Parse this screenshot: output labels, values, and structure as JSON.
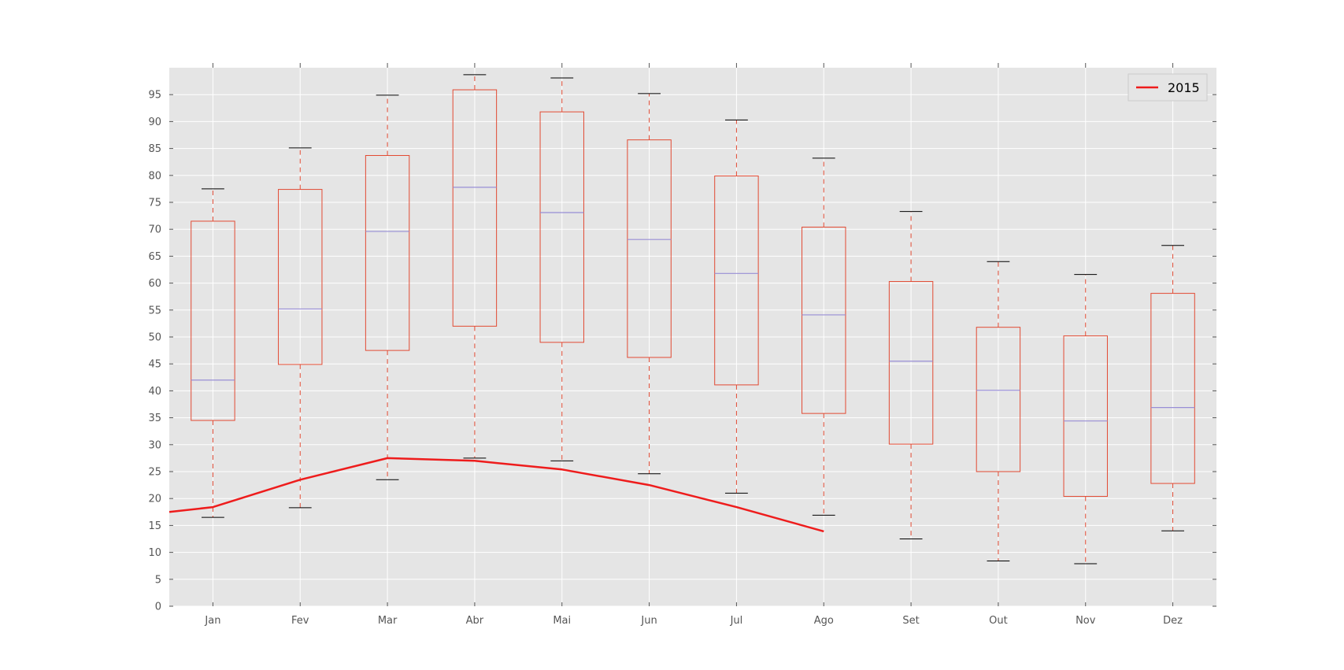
{
  "chart_data": {
    "type": "box",
    "categories": [
      "Jan",
      "Fev",
      "Mar",
      "Abr",
      "Mai",
      "Jun",
      "Jul",
      "Ago",
      "Set",
      "Out",
      "Nov",
      "Dez"
    ],
    "boxes": [
      {
        "whisker_low": 16.5,
        "q1": 34.5,
        "median": 42.0,
        "q3": 71.5,
        "whisker_high": 77.5
      },
      {
        "whisker_low": 18.3,
        "q1": 44.9,
        "median": 55.2,
        "q3": 77.4,
        "whisker_high": 85.1
      },
      {
        "whisker_low": 23.5,
        "q1": 47.5,
        "median": 69.6,
        "q3": 83.7,
        "whisker_high": 94.9
      },
      {
        "whisker_low": 27.5,
        "q1": 52.0,
        "median": 77.8,
        "q3": 95.9,
        "whisker_high": 98.7
      },
      {
        "whisker_low": 27.0,
        "q1": 49.0,
        "median": 73.1,
        "q3": 91.8,
        "whisker_high": 98.1
      },
      {
        "whisker_low": 24.6,
        "q1": 46.2,
        "median": 68.1,
        "q3": 86.6,
        "whisker_high": 95.2
      },
      {
        "whisker_low": 21.0,
        "q1": 41.1,
        "median": 61.8,
        "q3": 79.9,
        "whisker_high": 90.3
      },
      {
        "whisker_low": 16.9,
        "q1": 35.8,
        "median": 54.1,
        "q3": 70.4,
        "whisker_high": 83.2
      },
      {
        "whisker_low": 12.5,
        "q1": 30.1,
        "median": 45.5,
        "q3": 60.3,
        "whisker_high": 73.3
      },
      {
        "whisker_low": 8.4,
        "q1": 25.0,
        "median": 40.1,
        "q3": 51.8,
        "whisker_high": 64.0
      },
      {
        "whisker_low": 7.9,
        "q1": 20.4,
        "median": 34.4,
        "q3": 50.2,
        "whisker_high": 61.6
      },
      {
        "whisker_low": 14.0,
        "q1": 22.8,
        "median": 36.9,
        "q3": 58.1,
        "whisker_high": 67.0
      }
    ],
    "series": [
      {
        "name": "2015",
        "x": [
          0.5,
          1,
          2,
          3,
          4,
          5,
          6,
          7,
          8
        ],
        "values": [
          17.5,
          18.4,
          23.5,
          27.5,
          27.0,
          25.4,
          22.5,
          18.4,
          13.9
        ],
        "color": "#ee1c1c"
      }
    ],
    "y_ticks": [
      0,
      5,
      10,
      15,
      20,
      25,
      30,
      35,
      40,
      45,
      50,
      55,
      60,
      65,
      70,
      75,
      80,
      85,
      90,
      95
    ],
    "ylim": [
      0,
      100
    ],
    "xlim": [
      0.5,
      12.5
    ],
    "title": "",
    "xlabel": "",
    "ylabel": "",
    "grid": true,
    "legend_position": "top-right",
    "colors": {
      "background": "#e5e5e5",
      "grid": "#ffffff",
      "box": "#e24a33",
      "median": "#988ed5",
      "cap": "#000000",
      "tick_mark": "#555555"
    }
  }
}
